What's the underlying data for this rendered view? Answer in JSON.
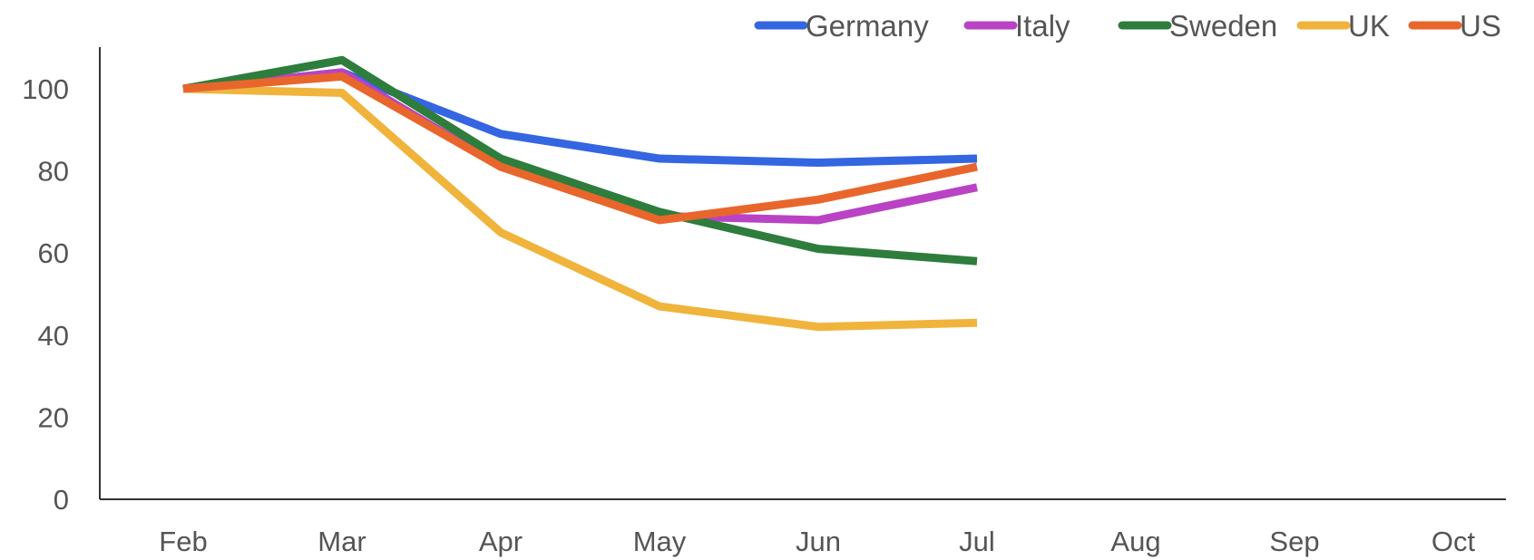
{
  "chart_data": {
    "type": "line",
    "categories": [
      "Feb",
      "Mar",
      "Apr",
      "May",
      "Jun",
      "Jul",
      "Aug",
      "Sep",
      "Oct"
    ],
    "ylim": [
      0,
      110
    ],
    "yticks": [
      0,
      20,
      40,
      60,
      80,
      100
    ],
    "grid": false,
    "legend_position": "top-right",
    "series": [
      {
        "name": "Germany",
        "color": "#3366e0",
        "values": [
          100,
          104,
          89,
          83,
          82,
          83,
          null,
          null,
          null
        ]
      },
      {
        "name": "Italy",
        "color": "#b943c4",
        "values": [
          100,
          104,
          81,
          69,
          68,
          76,
          null,
          null,
          null
        ]
      },
      {
        "name": "Sweden",
        "color": "#2e7d3c",
        "values": [
          100,
          107,
          83,
          70,
          61,
          58,
          null,
          null,
          null
        ]
      },
      {
        "name": "UK",
        "color": "#f0b43c",
        "values": [
          100,
          99,
          65,
          47,
          42,
          43,
          null,
          null,
          null
        ]
      },
      {
        "name": "US",
        "color": "#e8662c",
        "values": [
          100,
          103,
          81,
          68,
          73,
          81,
          null,
          null,
          null
        ]
      }
    ]
  }
}
